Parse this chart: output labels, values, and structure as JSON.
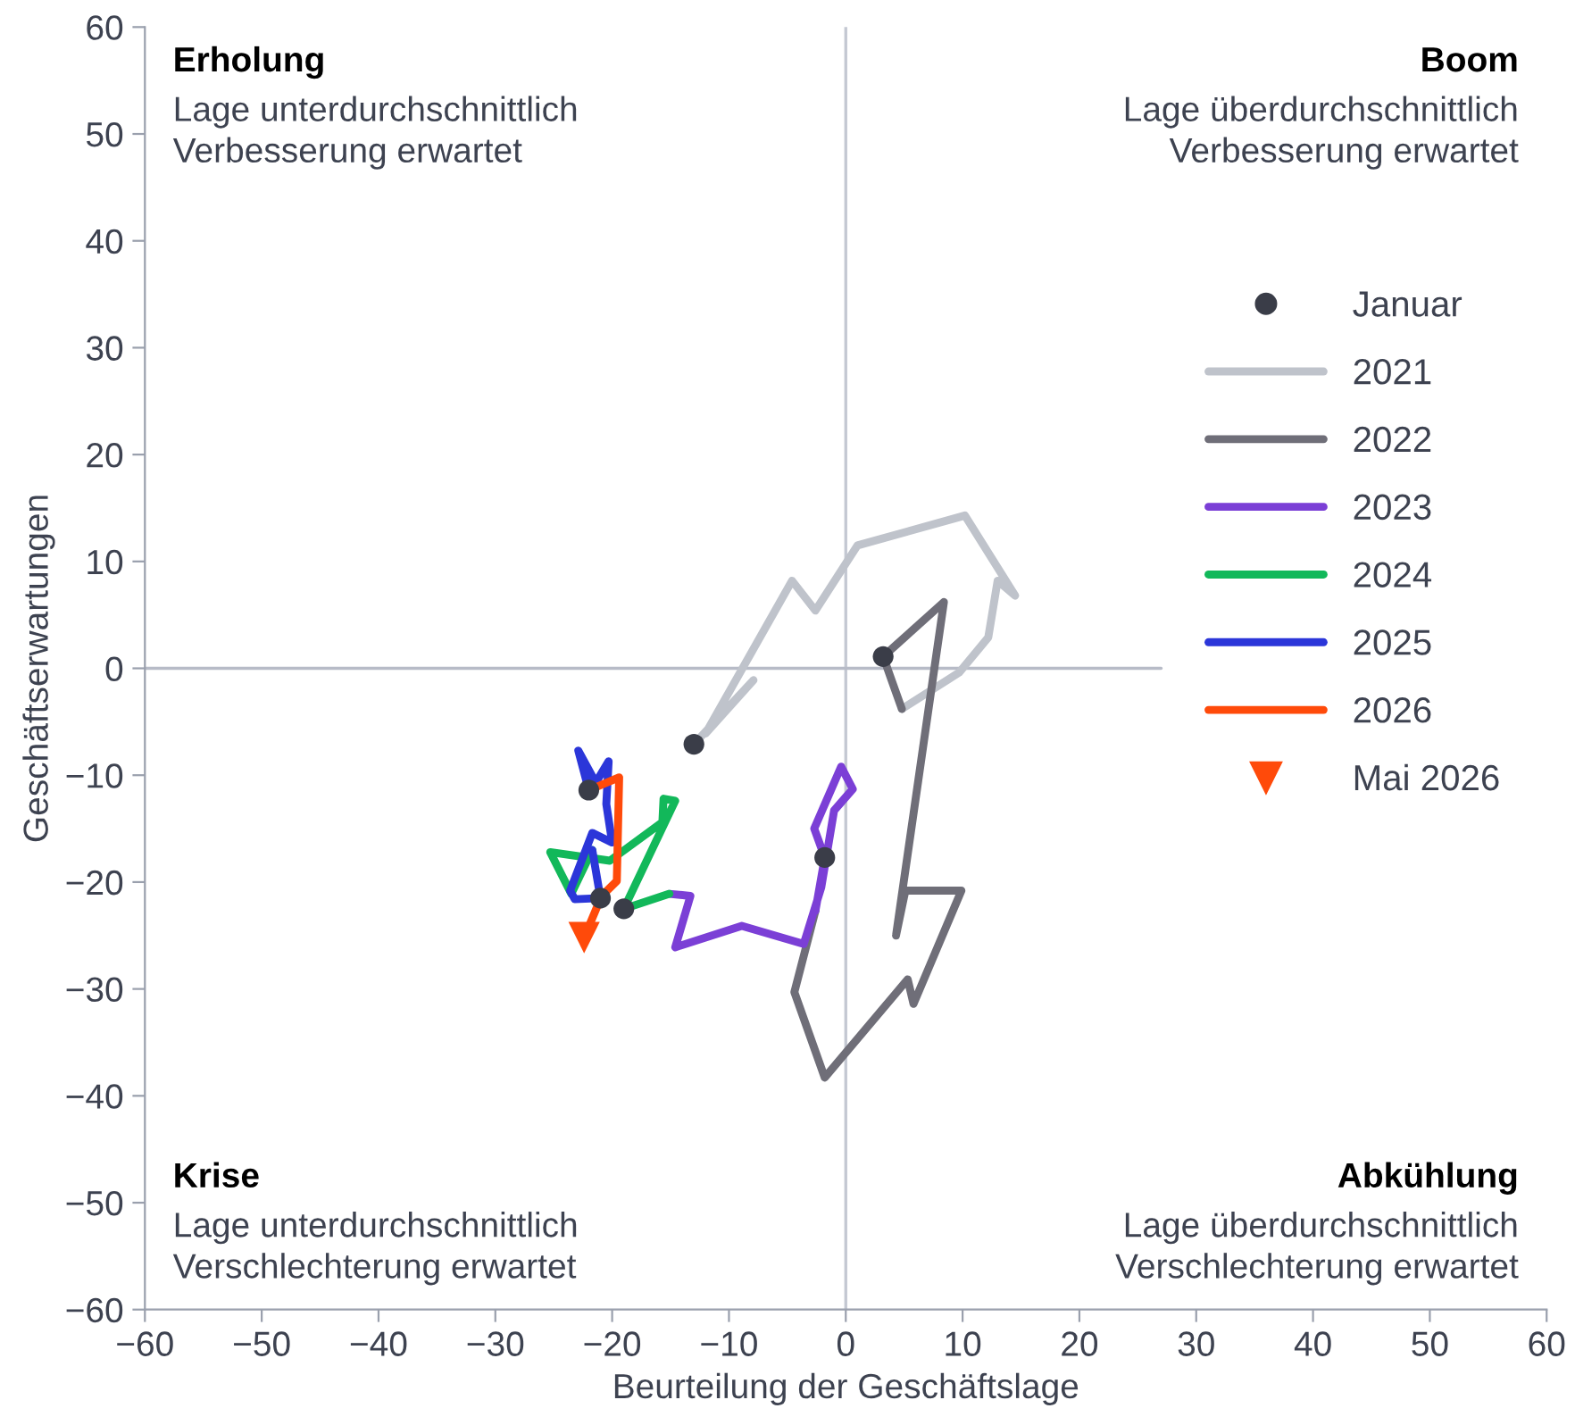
{
  "chart_data": {
    "type": "line",
    "xlabel": "Beurteilung der Geschäftslage",
    "ylabel": "Geschäftserwartungen",
    "xlim": [
      -60,
      60
    ],
    "ylim": [
      -60,
      60
    ],
    "xticks": [
      -60,
      -50,
      -40,
      -30,
      -20,
      -10,
      0,
      10,
      20,
      30,
      40,
      50,
      60
    ],
    "yticks": [
      -60,
      -50,
      -40,
      -30,
      -20,
      -10,
      0,
      10,
      20,
      30,
      40,
      50,
      60
    ],
    "grid": false,
    "legend": "top right",
    "line_style": "solid",
    "ref_lines": [
      {
        "axis": "x",
        "value": 0,
        "color": "#c4c8d2"
      },
      {
        "axis": "y",
        "value": 0,
        "color": "#b7bbc7"
      }
    ],
    "annotations": [
      "Erholung",
      "Lage unterdurchschnittlich\nVerbesserung erwartet",
      "Boom",
      "Lage überdurchschnittlich\nVerbesserung erwartet",
      "Krise",
      "Lage unterdurchschnittlich\nVerschlechterung erwartet",
      "Abkühlung",
      "Lage überdurchschnittlich\nVerschlechterung erwartet"
    ],
    "series": [
      {
        "name": "2021",
        "color": "#bfc3cb",
        "x": [
          -13.0,
          -7.9,
          -12.0,
          -4.6,
          -2.6,
          1.0,
          10.2,
          14.5,
          13.0,
          12.2,
          9.7,
          4.8
        ],
        "values": [
          -7.1,
          -1.1,
          -6.1,
          8.2,
          5.4,
          11.5,
          14.3,
          6.8,
          8.2,
          2.9,
          -0.4,
          -3.8
        ]
      },
      {
        "name": "2022",
        "color": "#6f6e78",
        "x": [
          4.8,
          3.2,
          8.4,
          4.3,
          5.1,
          9.9,
          5.8,
          5.3,
          -1.8,
          -4.4,
          -2.6
        ],
        "values": [
          -3.8,
          1.1,
          6.2,
          -25.0,
          -20.8,
          -20.8,
          -31.4,
          -29.1,
          -38.3,
          -30.3,
          -22.7
        ]
      },
      {
        "name": "2023",
        "color": "#7b3fd6",
        "x": [
          -2.6,
          -1.8,
          -2.7,
          -0.4,
          0.6,
          -1.0,
          -2.1,
          -3.6,
          -8.9,
          -14.6,
          -13.3,
          -15.1
        ],
        "values": [
          -22.7,
          -17.7,
          -15.0,
          -9.2,
          -11.3,
          -13.3,
          -20.5,
          -25.8,
          -24.1,
          -26.1,
          -21.3,
          -21.1
        ]
      },
      {
        "name": "2024",
        "color": "#12b85a",
        "x": [
          -15.1,
          -19.0,
          -14.6,
          -15.6,
          -15.7,
          -20.2,
          -25.3,
          -23.5,
          -21.7
        ],
        "values": [
          -21.1,
          -22.5,
          -12.4,
          -12.2,
          -14.4,
          -18.0,
          -17.2,
          -21.1,
          -17.0
        ]
      },
      {
        "name": "2025",
        "color": "#2b36d9",
        "x": [
          -21.7,
          -21.0,
          -23.2,
          -23.6,
          -21.7,
          -20.0,
          -20.5,
          -20.3,
          -21.4,
          -22.9,
          -22.0
        ],
        "values": [
          -17.0,
          -21.5,
          -21.6,
          -20.8,
          -15.4,
          -16.3,
          -12.7,
          -8.7,
          -10.7,
          -7.7,
          -11.4
        ]
      },
      {
        "name": "2026",
        "color": "#ff4a0a",
        "x": [
          -22.0,
          -19.4,
          -19.6,
          -20.9,
          -22.4
        ],
        "values": [
          -11.4,
          -10.2,
          -19.9,
          -21.3,
          -25.2
        ]
      },
      {
        "name": "Mai 2026",
        "type": "scatter",
        "marker": "triangle",
        "color": "#ff4a0a",
        "x": [
          -22.4
        ],
        "values": [
          -25.2
        ]
      },
      {
        "name": "Januar",
        "type": "scatter",
        "marker": "circle",
        "color": "#3a3d48",
        "x": [
          -13.0,
          3.2,
          -1.8,
          -19.0,
          -21.0,
          -22.0
        ],
        "values": [
          -7.1,
          1.1,
          -17.7,
          -22.5,
          -21.5,
          -11.4
        ]
      }
    ]
  }
}
